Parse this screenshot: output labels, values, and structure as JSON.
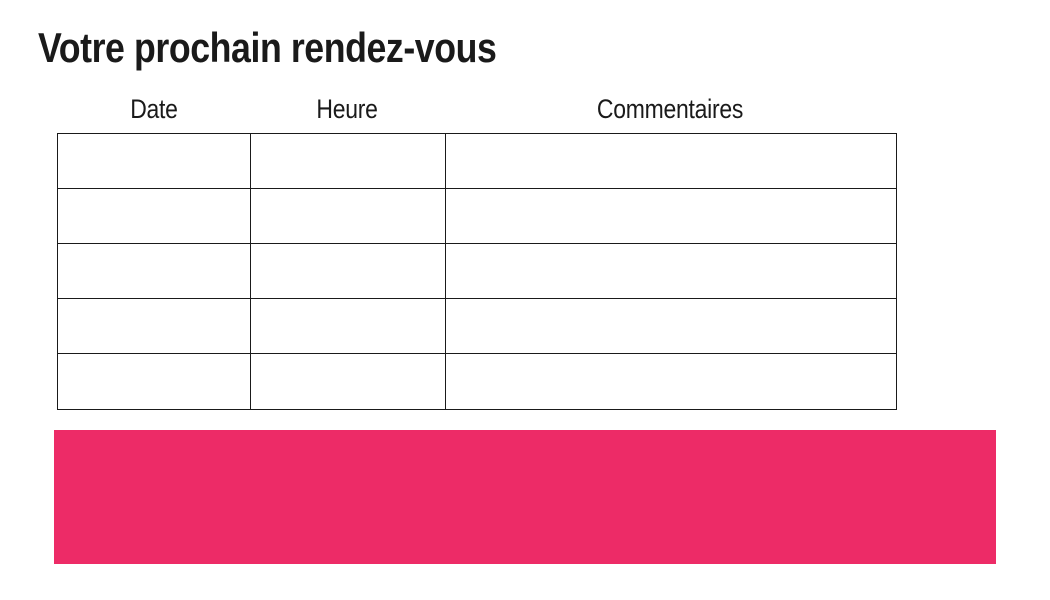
{
  "page": {
    "title": "Votre prochain rendez-vous"
  },
  "appointments_table": {
    "headers": [
      "Date",
      "Heure",
      "Commentaires"
    ],
    "rows": [
      [
        "",
        "",
        ""
      ],
      [
        "",
        "",
        ""
      ],
      [
        "",
        "",
        ""
      ],
      [
        "",
        "",
        ""
      ],
      [
        "",
        "",
        ""
      ]
    ]
  },
  "colors": {
    "accent_pink": "#ED2B67",
    "text_primary": "#1A1A1A",
    "table_border": "#1A1A1A",
    "page_bg": "#FFFFFF"
  }
}
